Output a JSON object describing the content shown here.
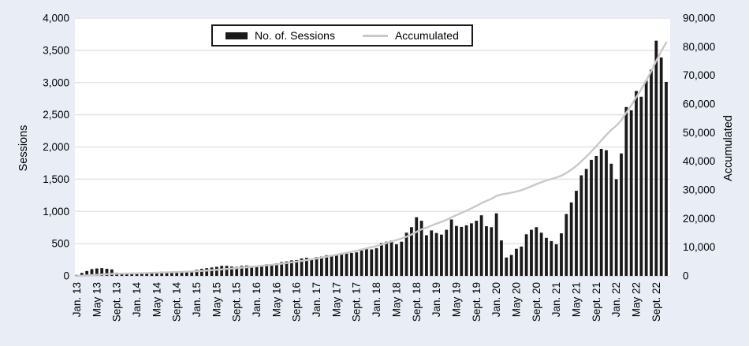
{
  "figure": {
    "left_axis_title": "Sessions",
    "right_axis_title": "Accumulated",
    "legend": {
      "bar_label": "No. of. Sessions",
      "line_label": "Accumulated"
    }
  },
  "chart_data": {
    "type": "bar",
    "description": "Monthly number of sessions (bars, left axis) with accumulated cumulative total (line, right axis), Jan 2013 - Nov 2022",
    "x": {
      "start": "Jan 2013",
      "end": "Nov 2022",
      "interval": "monthly",
      "count": 119
    },
    "x_tick_labels": [
      "Jan. 13",
      "May 13",
      "Sept. 13",
      "Jan. 14",
      "May 14",
      "Sept. 14",
      "Jan. 15",
      "May 15",
      "Sept. 15",
      "Jan. 16",
      "May 16",
      "Sept. 16",
      "Jan. 17",
      "May 17",
      "Sept. 17",
      "Jan. 18",
      "May 18",
      "Sept. 18",
      "Jan. 19",
      "May 19",
      "Sept. 19",
      "Jan. 20",
      "May 20",
      "Sept. 20",
      "Jan. 21",
      "May 21",
      "Sept. 21",
      "Jan. 22",
      "May 22",
      "Sept. 22"
    ],
    "x_tick_month_interval": 4,
    "series": [
      {
        "name": "No. of. Sessions",
        "type": "bar",
        "axis": "left",
        "values": [
          15,
          45,
          75,
          105,
          115,
          120,
          110,
          100,
          50,
          40,
          35,
          35,
          40,
          45,
          50,
          55,
          60,
          65,
          60,
          55,
          50,
          60,
          70,
          65,
          95,
          110,
          120,
          130,
          140,
          155,
          155,
          145,
          140,
          155,
          160,
          150,
          155,
          165,
          180,
          175,
          195,
          215,
          225,
          240,
          245,
          270,
          280,
          265,
          290,
          300,
          320,
          310,
          330,
          345,
          360,
          355,
          365,
          395,
          430,
          410,
          430,
          510,
          530,
          550,
          490,
          530,
          670,
          755,
          910,
          855,
          630,
          705,
          665,
          640,
          715,
          875,
          775,
          760,
          785,
          815,
          855,
          940,
          770,
          755,
          970,
          550,
          285,
          325,
          420,
          455,
          645,
          715,
          755,
          670,
          590,
          540,
          490,
          660,
          960,
          1140,
          1320,
          1560,
          1660,
          1800,
          1860,
          1970,
          1950,
          1740,
          1500,
          1900,
          2620,
          2570,
          2870,
          2780,
          3030,
          3200,
          3650,
          3390,
          3010
        ]
      },
      {
        "name": "Accumulated",
        "type": "line",
        "axis": "right",
        "derived": "cumulative_sum_of_sessions"
      }
    ],
    "left_axis": {
      "label": "Sessions",
      "min": 0,
      "max": 4000,
      "tick_step": 500,
      "tick_labels": [
        "0",
        "500",
        "1,000",
        "1,500",
        "2,000",
        "2,500",
        "3,000",
        "3,500",
        "4,000"
      ]
    },
    "right_axis": {
      "label": "Accumulated",
      "min": 0,
      "max": 90000,
      "tick_step": 10000,
      "tick_labels": [
        "0",
        "10,000",
        "20,000",
        "30,000",
        "40,000",
        "50,000",
        "60,000",
        "70,000",
        "80,000",
        "90,000"
      ]
    },
    "grid": true,
    "legend_position": "top-center",
    "colors": {
      "bar": "#1a1a1a",
      "line": "#c9c9c9",
      "figure_background": "#e8edf6",
      "plot_background": "#ffffff",
      "gridline": "#e0e4ea",
      "text": "#000000"
    }
  }
}
